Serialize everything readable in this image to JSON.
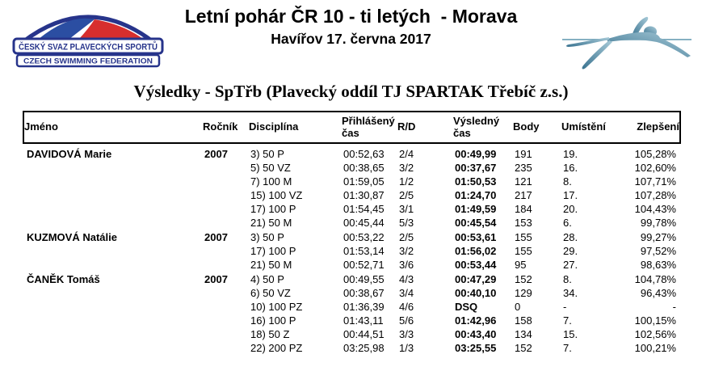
{
  "header": {
    "title": "Letní pohár ČR 10 - ti letých  - Morava",
    "subtitle": "Havířov 17. června 2017",
    "logo": {
      "line1": "ČESKÝ SVAZ PLAVECKÝCH SPORTŮ",
      "line2": "CZECH SWIMMING FEDERATION"
    },
    "icons": {
      "federation_logo": "czech-swimming-federation-logo",
      "swimmer": "swimmer-icon"
    }
  },
  "section_title": "Výsledky - SpTřb (Plavecký oddíl TJ SPARTAK Třebíč z.s.)",
  "colors": {
    "logo_navy": "#27348B",
    "logo_red": "#D72E2E",
    "swimmer_gradient_dark": "#3A7390",
    "swimmer_gradient_light": "#A7CAD8",
    "text": "#000000"
  },
  "table": {
    "columns": [
      "Jméno",
      "Ročník",
      "Disciplína",
      "Přihlášený čas",
      "R/D",
      "Výsledný čas",
      "Body",
      "Umístění",
      "Zlepšení"
    ],
    "swimmers": [
      {
        "name": "DAVIDOVÁ Marie",
        "year": "2007",
        "events": [
          {
            "discipline": "3) 50 P",
            "entry_time": "00:52,63",
            "rd": "2/4",
            "result_time": "00:49,99",
            "points": "191",
            "place": "19.",
            "improvement": "105,28%"
          },
          {
            "discipline": "5) 50 VZ",
            "entry_time": "00:38,65",
            "rd": "3/2",
            "result_time": "00:37,67",
            "points": "235",
            "place": "16.",
            "improvement": "102,60%"
          },
          {
            "discipline": "7) 100 M",
            "entry_time": "01:59,05",
            "rd": "1/2",
            "result_time": "01:50,53",
            "points": "121",
            "place": "8.",
            "improvement": "107,71%"
          },
          {
            "discipline": "15) 100 VZ",
            "entry_time": "01:30,87",
            "rd": "2/5",
            "result_time": "01:24,70",
            "points": "217",
            "place": "17.",
            "improvement": "107,28%"
          },
          {
            "discipline": "17) 100 P",
            "entry_time": "01:54,45",
            "rd": "3/1",
            "result_time": "01:49,59",
            "points": "184",
            "place": "20.",
            "improvement": "104,43%"
          },
          {
            "discipline": "21) 50 M",
            "entry_time": "00:45,44",
            "rd": "5/3",
            "result_time": "00:45,54",
            "points": "153",
            "place": "6.",
            "improvement": "99,78%"
          }
        ]
      },
      {
        "name": "KUZMOVÁ Natálie",
        "year": "2007",
        "events": [
          {
            "discipline": "3) 50 P",
            "entry_time": "00:53,22",
            "rd": "2/5",
            "result_time": "00:53,61",
            "points": "155",
            "place": "28.",
            "improvement": "99,27%"
          },
          {
            "discipline": "17) 100 P",
            "entry_time": "01:53,14",
            "rd": "3/2",
            "result_time": "01:56,02",
            "points": "155",
            "place": "29.",
            "improvement": "97,52%"
          },
          {
            "discipline": "21) 50 M",
            "entry_time": "00:52,71",
            "rd": "3/6",
            "result_time": "00:53,44",
            "points": "95",
            "place": "27.",
            "improvement": "98,63%"
          }
        ]
      },
      {
        "name": "ČANĚK Tomáš",
        "year": "2007",
        "events": [
          {
            "discipline": "4) 50 P",
            "entry_time": "00:49,55",
            "rd": "4/3",
            "result_time": "00:47,29",
            "points": "152",
            "place": "8.",
            "improvement": "104,78%"
          },
          {
            "discipline": "6) 50 VZ",
            "entry_time": "00:38,67",
            "rd": "3/4",
            "result_time": "00:40,10",
            "points": "129",
            "place": "34.",
            "improvement": "96,43%"
          },
          {
            "discipline": "10) 100 PZ",
            "entry_time": "01:36,39",
            "rd": "4/6",
            "result_time": "DSQ",
            "points": "0",
            "place": "-",
            "improvement": "-"
          },
          {
            "discipline": "16) 100 P",
            "entry_time": "01:43,11",
            "rd": "5/6",
            "result_time": "01:42,96",
            "points": "158",
            "place": "7.",
            "improvement": "100,15%"
          },
          {
            "discipline": "18) 50 Z",
            "entry_time": "00:44,51",
            "rd": "3/3",
            "result_time": "00:43,40",
            "points": "134",
            "place": "15.",
            "improvement": "102,56%"
          },
          {
            "discipline": "22) 200 PZ",
            "entry_time": "03:25,98",
            "rd": "1/3",
            "result_time": "03:25,55",
            "points": "152",
            "place": "7.",
            "improvement": "100,21%"
          }
        ]
      }
    ]
  }
}
